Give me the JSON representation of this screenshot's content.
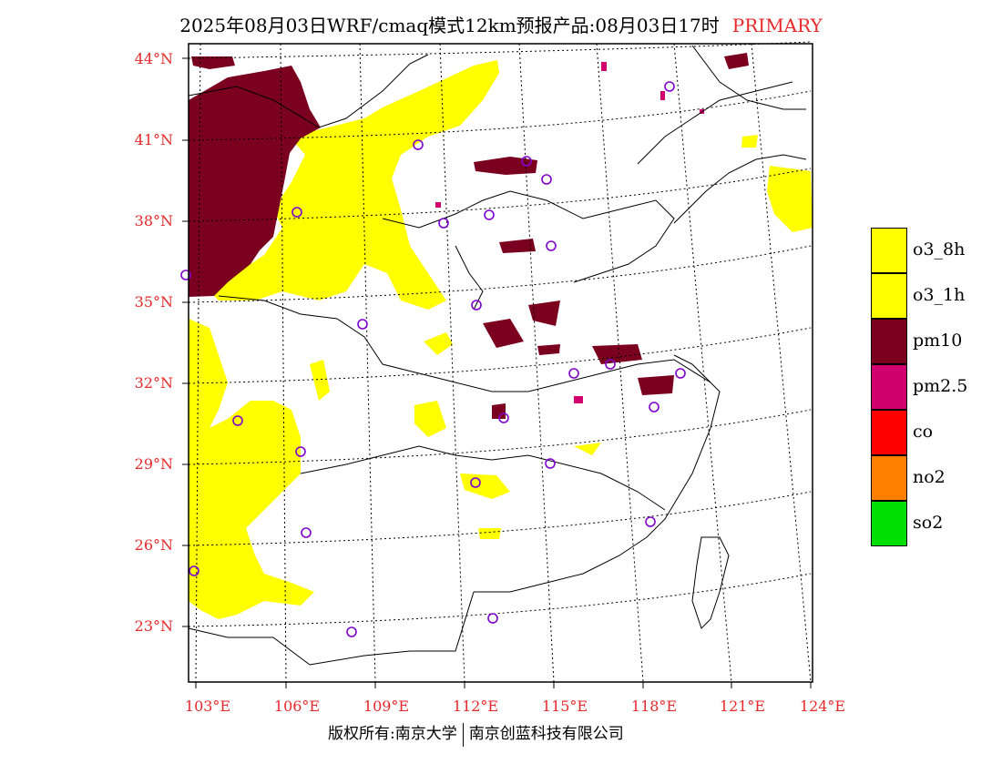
{
  "title": {
    "main": "2025年08月03日WRF/cmaq模式12km预报产品:08月03日17时",
    "tag": "PRIMARY"
  },
  "axes": {
    "lat_labels": [
      "44°N",
      "41°N",
      "38°N",
      "35°N",
      "32°N",
      "29°N",
      "26°N",
      "23°N"
    ],
    "lon_labels": [
      "103°E",
      "106°E",
      "109°E",
      "112°E",
      "115°E",
      "118°E",
      "121°E",
      "124°E"
    ]
  },
  "legend": [
    {
      "label": "o3_8h",
      "color": "#ffff00"
    },
    {
      "label": "o3_1h",
      "color": "#ffff00"
    },
    {
      "label": "pm10",
      "color": "#7b0020"
    },
    {
      "label": "pm2.5",
      "color": "#d0006f"
    },
    {
      "label": "co",
      "color": "#ff0000"
    },
    {
      "label": "no2",
      "color": "#ff8000"
    },
    {
      "label": "so2",
      "color": "#00e000"
    }
  ],
  "footer": {
    "left": "版权所有:南京大学",
    "right": "南京创蓝科技有限公司"
  }
}
